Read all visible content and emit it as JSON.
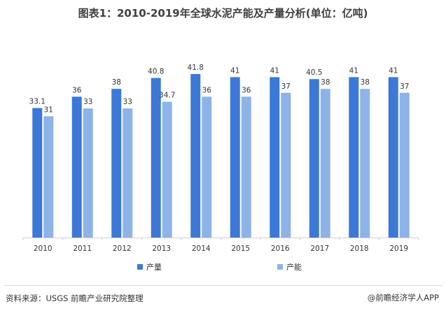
{
  "title": "图表1：2010-2019年全球水泥产能及产量分析(单位：亿吨)",
  "chart_data": {
    "type": "bar",
    "categories": [
      "2010",
      "2011",
      "2012",
      "2013",
      "2014",
      "2015",
      "2016",
      "2017",
      "2018",
      "2019"
    ],
    "series": [
      {
        "name": "产量",
        "color": "#3c78d8",
        "values": [
          33.1,
          36,
          38,
          40.8,
          41.8,
          41,
          41,
          40.5,
          41,
          41
        ],
        "labels": [
          "33.1",
          "36",
          "38",
          "40.8",
          "41.8",
          "41",
          "41",
          "40.5",
          "41",
          "41"
        ]
      },
      {
        "name": "产能",
        "color": "#8db3e8",
        "values": [
          31,
          33,
          33,
          34.7,
          36,
          36,
          37,
          38,
          38,
          37
        ],
        "labels": [
          "31",
          "33",
          "33",
          "34.7",
          "36",
          "36",
          "37",
          "38",
          "38",
          "37"
        ]
      }
    ],
    "ylim": [
      0,
      45
    ],
    "grid": false,
    "legend": "bottom"
  },
  "footer": {
    "source": "资料来源：USGS 前瞻产业研究院整理",
    "brand": "@前瞻经济学人APP"
  }
}
